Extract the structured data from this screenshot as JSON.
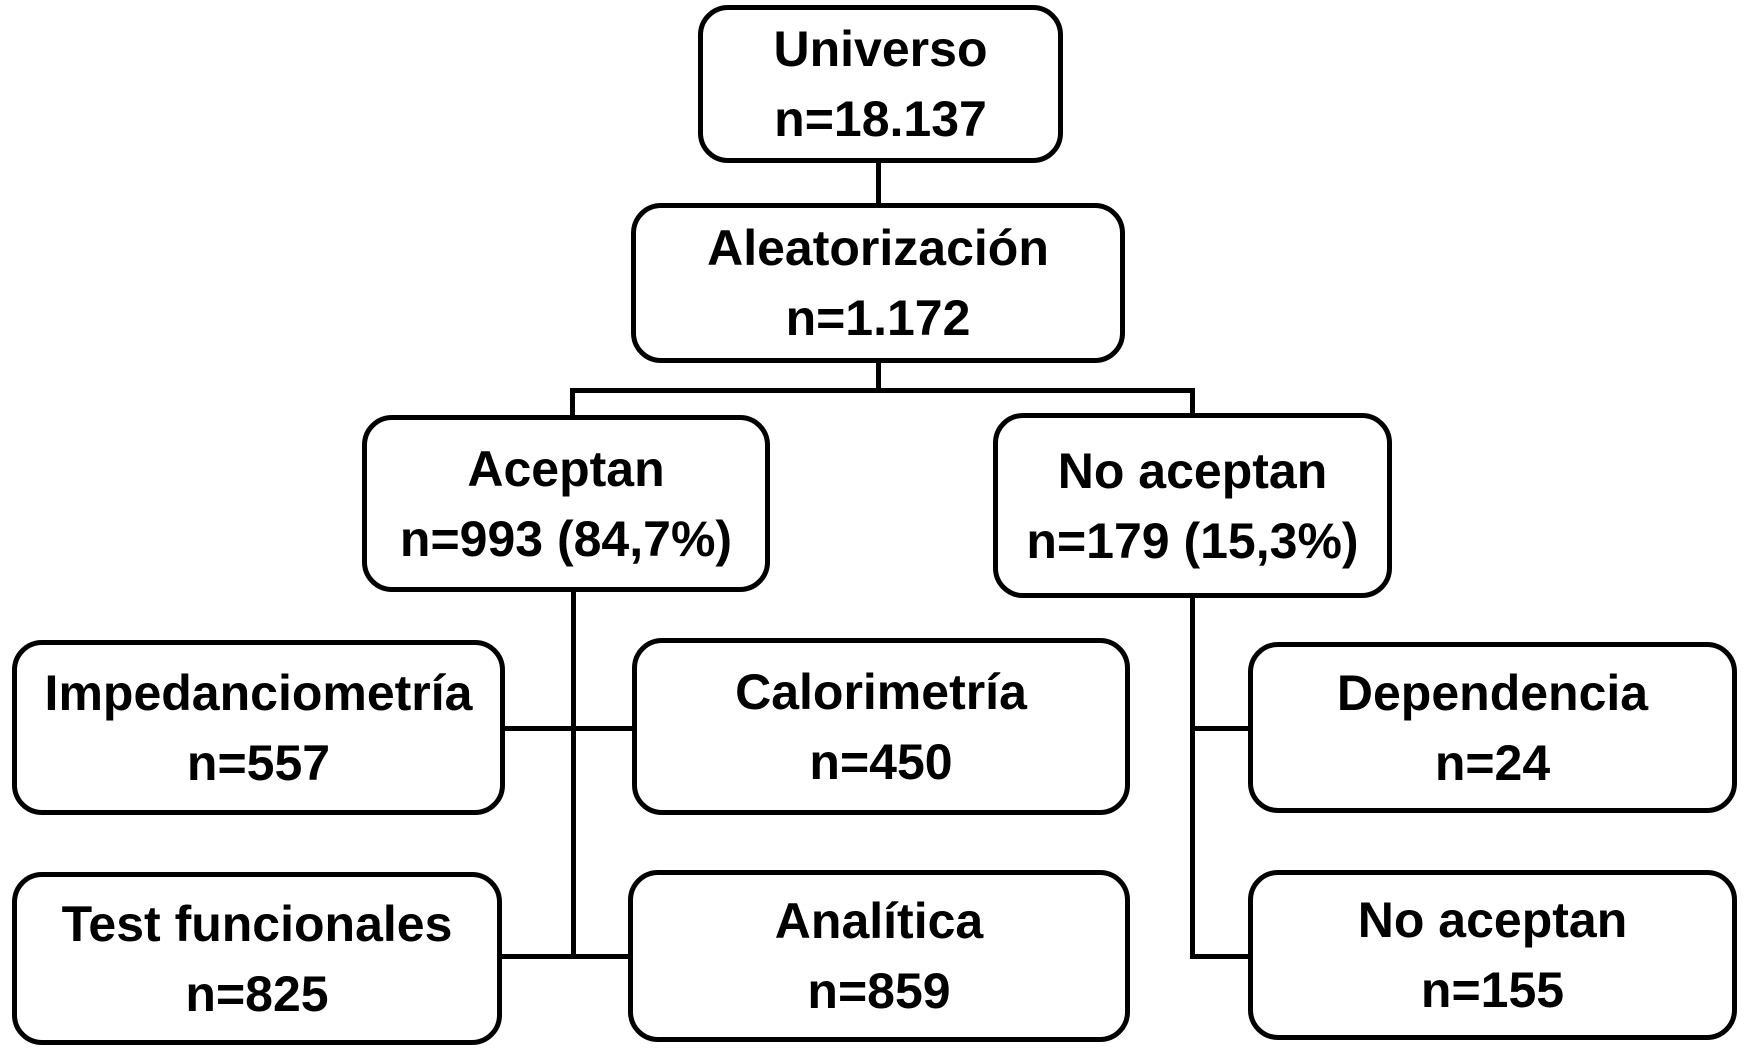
{
  "diagram": {
    "type": "flowchart",
    "nodes": {
      "universo": {
        "label": "Universo",
        "value": "n=18.137"
      },
      "aleatorizacion": {
        "label": "Aleatorización",
        "value": "n=1.172"
      },
      "aceptan": {
        "label": "Aceptan",
        "value": "n=993 (84,7%)"
      },
      "no_aceptan": {
        "label": "No aceptan",
        "value": "n=179 (15,3%)"
      },
      "impedanciometria": {
        "label": "Impedanciometría",
        "value": "n=557"
      },
      "calorimetria": {
        "label": "Calorimetría",
        "value": "n=450"
      },
      "dependencia": {
        "label": "Dependencia",
        "value": "n=24"
      },
      "test_funcionales": {
        "label": "Test funcionales",
        "value": "n=825"
      },
      "analitica": {
        "label": "Analítica",
        "value": "n=859"
      },
      "no_aceptan_final": {
        "label": "No aceptan",
        "value": "n=155"
      }
    },
    "colors": {
      "background": "#ffffff",
      "box_fill": "#ffffff",
      "box_border": "#000000",
      "text": "#000000",
      "connector": "#000000"
    }
  }
}
